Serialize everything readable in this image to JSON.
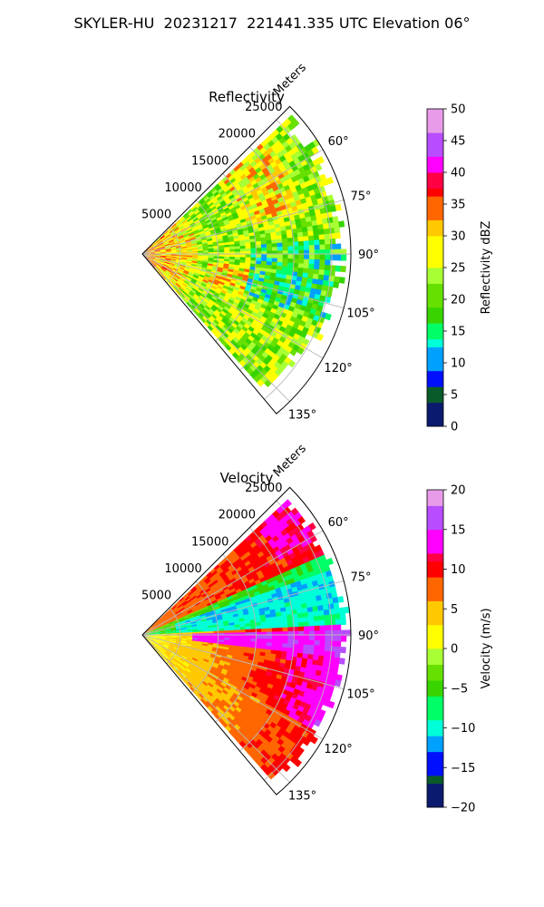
{
  "figure_title": "SKYLER-HU  20231217  221441.335 UTC Elevation 06°",
  "chart_data": [
    {
      "type": "heatmap",
      "title": "Reflectivity",
      "radial_label": "Meters",
      "range_ticks": [
        5000,
        10000,
        15000,
        20000,
        25000
      ],
      "range_tick_labels": [
        "5000",
        "10000",
        "15000",
        "20000",
        "25000"
      ],
      "range_max": 27500,
      "azimuth_range": [
        45,
        140
      ],
      "azimuth_ticks": [
        60,
        75,
        90,
        105,
        120,
        135
      ],
      "azimuth_tick_labels": [
        "60°",
        "75°",
        "90°",
        "105°",
        "120°",
        "135°"
      ],
      "grid": true,
      "colorbar": {
        "label": "Reflectivity dBZ",
        "range": [
          0,
          50
        ],
        "ticks": [
          0,
          5,
          10,
          15,
          20,
          25,
          30,
          35,
          40,
          45,
          50
        ],
        "tick_labels": [
          "0",
          "5",
          "10",
          "15",
          "20",
          "25",
          "30",
          "35",
          "40",
          "45",
          "50"
        ]
      },
      "colormap": [
        [
          0,
          "#0a1a6e"
        ],
        [
          4,
          "#0a5b2a"
        ],
        [
          6,
          "#0010ff"
        ],
        [
          9,
          "#00a0ff"
        ],
        [
          12,
          "#00ffd8"
        ],
        [
          14,
          "#00ff66"
        ],
        [
          16,
          "#38d400"
        ],
        [
          19,
          "#66e000"
        ],
        [
          22,
          "#a8ff33"
        ],
        [
          25,
          "#ffff00"
        ],
        [
          30,
          "#ffc800"
        ],
        [
          33,
          "#ff6600"
        ],
        [
          36,
          "#ff0000"
        ],
        [
          38,
          "#ff0044"
        ],
        [
          40,
          "#ff00ff"
        ],
        [
          42,
          "#b84dff"
        ],
        [
          46,
          "#e89be8"
        ],
        [
          50,
          "#ffe6ff"
        ]
      ]
    },
    {
      "type": "heatmap",
      "title": "Velocity",
      "radial_label": "Meters",
      "range_ticks": [
        5000,
        10000,
        15000,
        20000,
        25000
      ],
      "range_tick_labels": [
        "5000",
        "10000",
        "15000",
        "20000",
        "25000"
      ],
      "range_max": 27500,
      "azimuth_range": [
        45,
        140
      ],
      "azimuth_ticks": [
        60,
        75,
        90,
        105,
        120,
        135
      ],
      "azimuth_tick_labels": [
        "60°",
        "75°",
        "90°",
        "105°",
        "120°",
        "135°"
      ],
      "grid": true,
      "colorbar": {
        "label": "Velocity (m/s)",
        "range": [
          -20,
          20
        ],
        "ticks": [
          -20,
          -15,
          -10,
          -5,
          0,
          5,
          10,
          15,
          20
        ],
        "tick_labels": [
          "−20",
          "−15",
          "−10",
          "−5",
          "0",
          "5",
          "10",
          "15",
          "20"
        ]
      },
      "colormap": [
        [
          -20,
          "#0a1a6e"
        ],
        [
          -17,
          "#0a5b2a"
        ],
        [
          -16,
          "#0010ff"
        ],
        [
          -13,
          "#00a0ff"
        ],
        [
          -11,
          "#00ffd8"
        ],
        [
          -9,
          "#00ff66"
        ],
        [
          -6,
          "#38d400"
        ],
        [
          -4,
          "#66e000"
        ],
        [
          -2,
          "#a8ff33"
        ],
        [
          0,
          "#ffff00"
        ],
        [
          3,
          "#ffc800"
        ],
        [
          6,
          "#ff6600"
        ],
        [
          9,
          "#ff0000"
        ],
        [
          11,
          "#ff0044"
        ],
        [
          12,
          "#ff00ff"
        ],
        [
          15,
          "#b84dff"
        ],
        [
          18,
          "#e89be8"
        ],
        [
          20,
          "#ffe6ff"
        ]
      ]
    }
  ]
}
